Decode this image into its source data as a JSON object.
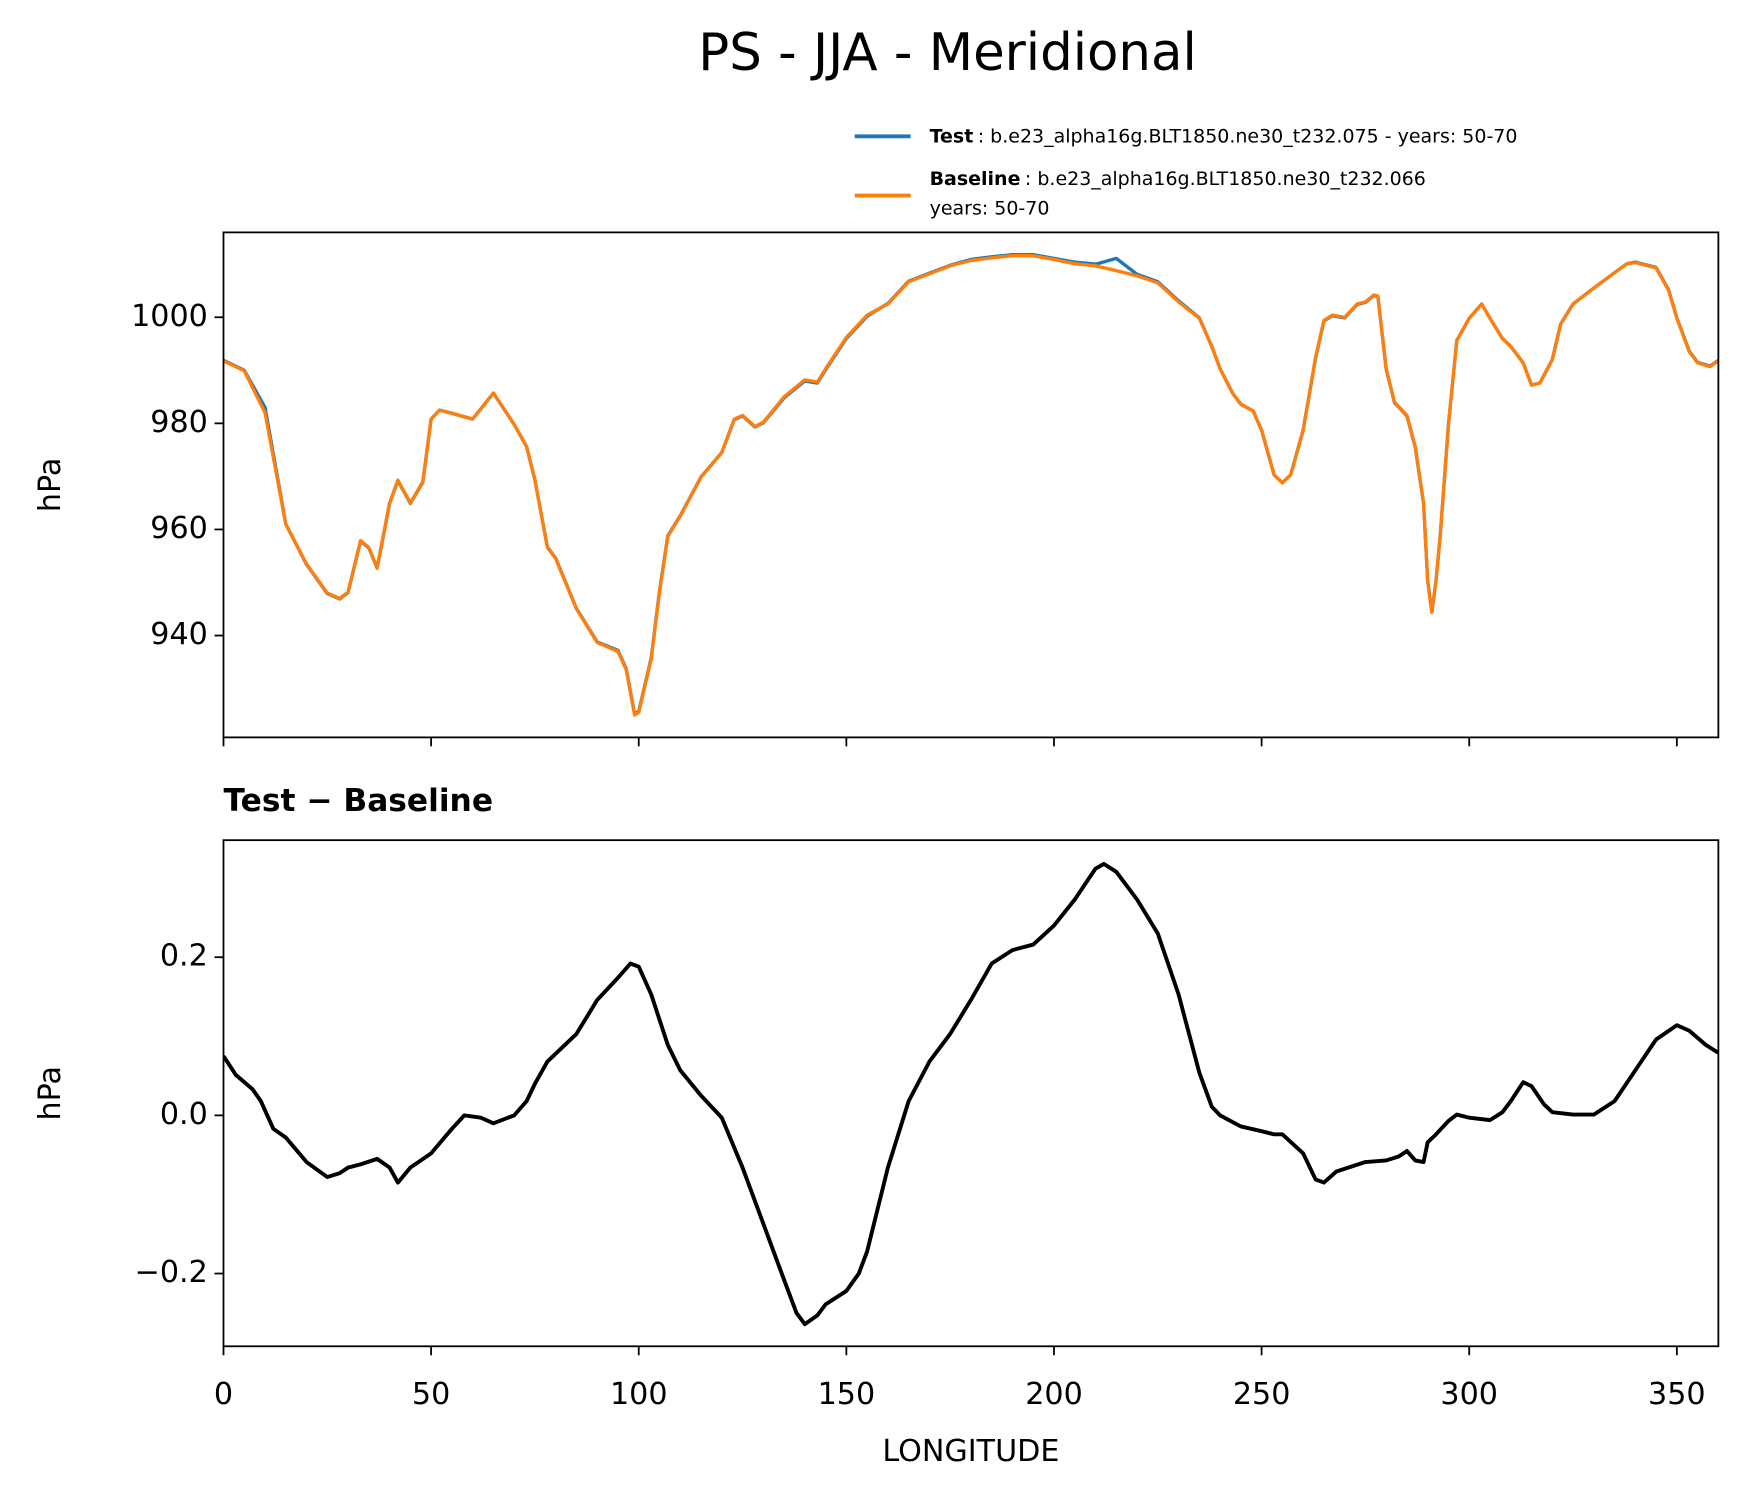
{
  "title": "PS - JJA - Meridional",
  "chart_data": [
    {
      "type": "line",
      "ylabel": "hPa",
      "legend": "above right",
      "x_tick_labels": false,
      "xlim": [
        0,
        360
      ],
      "xticks": [
        0,
        50,
        100,
        150,
        200,
        250,
        300,
        350
      ],
      "ylim": [
        920.8,
        1016
      ],
      "yticks": [
        940,
        960,
        980,
        1000
      ],
      "x": [
        0,
        5,
        10,
        15,
        20,
        25,
        28,
        30,
        33,
        35,
        37,
        40,
        42,
        45,
        48,
        50,
        52,
        55,
        60,
        65,
        70,
        73,
        75,
        78,
        80,
        85,
        90,
        95,
        97,
        99,
        100,
        103,
        105,
        107,
        110,
        115,
        120,
        123,
        125,
        128,
        130,
        135,
        140,
        143,
        145,
        150,
        155,
        160,
        165,
        170,
        175,
        180,
        185,
        190,
        195,
        200,
        205,
        210,
        215,
        220,
        225,
        230,
        235,
        238,
        240,
        243,
        245,
        248,
        250,
        253,
        255,
        257,
        260,
        263,
        265,
        267,
        270,
        273,
        275,
        277,
        278,
        280,
        282,
        285,
        287,
        289,
        290,
        291,
        292,
        293,
        295,
        297,
        300,
        303,
        305,
        308,
        310,
        313,
        315,
        317,
        320,
        322,
        325,
        330,
        335,
        338,
        340,
        345,
        348,
        350,
        353,
        355,
        358,
        360
      ],
      "series": [
        {
          "name": "Test",
          "description": [
            ": b.e23_alpha16g.BLT1850.ne30_t232.075 - years: 50-70"
          ],
          "color": "#1f77b4",
          "values": [
            991.9,
            990.0,
            983.0,
            961.0,
            953.4,
            947.9,
            946.9,
            948.1,
            957.8,
            956.5,
            952.7,
            964.9,
            969.2,
            964.9,
            968.9,
            980.8,
            982.5,
            981.9,
            980.8,
            985.7,
            979.8,
            975.6,
            969.3,
            956.7,
            954.6,
            945.1,
            938.8,
            937.2,
            933.7,
            925.2,
            925.7,
            935.8,
            948.4,
            958.8,
            962.6,
            969.9,
            974.5,
            980.7,
            981.4,
            979.3,
            980.1,
            984.8,
            988.0,
            987.6,
            990.1,
            996.0,
            1000.2,
            1002.6,
            1006.8,
            1008.3,
            1009.8,
            1010.9,
            1011.4,
            1011.8,
            1011.8,
            1011.1,
            1010.4,
            1010.0,
            1011.1,
            1008.1,
            1006.7,
            1003.1,
            999.9,
            994.5,
            990.3,
            985.7,
            983.6,
            982.3,
            978.7,
            970.3,
            968.8,
            970.3,
            978.7,
            992.3,
            999.3,
            1000.3,
            999.9,
            1002.4,
            1002.8,
            1004.1,
            1003.9,
            990.2,
            983.9,
            981.4,
            975.5,
            964.9,
            950.3,
            944.4,
            950.3,
            958.7,
            979.8,
            995.6,
            999.8,
            1002.5,
            999.8,
            996.0,
            994.5,
            991.4,
            987.2,
            987.6,
            992.0,
            998.7,
            1002.5,
            1005.5,
            1008.4,
            1010.1,
            1010.4,
            1009.4,
            1005.2,
            999.9,
            993.6,
            991.5,
            990.8,
            991.9
          ]
        },
        {
          "name": "Baseline",
          "description": [
            ": b.e23_alpha16g.BLT1850.ne30_t232.066",
            "years: 50-70"
          ],
          "color": "#ff7f0e",
          "values": [
            991.8,
            989.9,
            982.0,
            961.0,
            953.5,
            948.0,
            947.0,
            948.2,
            957.9,
            956.6,
            952.8,
            965.0,
            969.3,
            965.0,
            969.0,
            980.8,
            982.5,
            981.9,
            980.8,
            985.7,
            979.8,
            975.6,
            969.3,
            956.6,
            954.5,
            945.0,
            938.7,
            937.0,
            933.5,
            925.0,
            925.5,
            935.6,
            948.2,
            958.7,
            962.5,
            969.9,
            974.5,
            980.8,
            981.5,
            979.4,
            980.2,
            985.0,
            988.2,
            987.8,
            990.3,
            996.2,
            1000.4,
            1002.5,
            1006.7,
            1008.2,
            1009.7,
            1010.7,
            1011.2,
            1011.6,
            1011.6,
            1010.9,
            1010.1,
            1009.7,
            1008.8,
            1007.8,
            1006.5,
            1002.9,
            999.8,
            994.5,
            990.3,
            985.7,
            983.6,
            982.3,
            978.7,
            970.3,
            968.8,
            970.3,
            978.7,
            992.4,
            999.4,
            1000.4,
            1000.0,
            1002.5,
            1002.9,
            1004.2,
            1004.0,
            990.3,
            984.0,
            981.5,
            975.6,
            965.0,
            950.3,
            944.4,
            950.3,
            958.7,
            979.8,
            995.6,
            999.8,
            1002.5,
            999.8,
            996.0,
            994.5,
            991.4,
            987.2,
            987.6,
            992.0,
            998.7,
            1002.5,
            1005.5,
            1008.4,
            1010.1,
            1010.3,
            1009.3,
            1005.1,
            999.8,
            993.5,
            991.4,
            990.7,
            991.8
          ]
        }
      ]
    },
    {
      "type": "line",
      "title": "Test − Baseline",
      "ylabel": "hPa",
      "xlabel": "LONGITUDE",
      "color": "#000000",
      "xlim": [
        0,
        360
      ],
      "xticks": [
        0,
        50,
        100,
        150,
        200,
        250,
        300,
        350
      ],
      "ylim": [
        -0.292,
        0.348
      ],
      "yticks": [
        {
          "value": -0.2,
          "label": "−0.2"
        },
        {
          "value": 0,
          "label": "0.0"
        },
        0.2
      ],
      "x": [
        0,
        3,
        7,
        9,
        12,
        15,
        20,
        25,
        28,
        30,
        33,
        37,
        40,
        42,
        45,
        50,
        55,
        58,
        62,
        65,
        70,
        73,
        75,
        78,
        85,
        90,
        95,
        98,
        100,
        103,
        107,
        110,
        115,
        120,
        125,
        130,
        135,
        138,
        140,
        143,
        145,
        150,
        153,
        155,
        160,
        165,
        170,
        175,
        180,
        185,
        190,
        195,
        200,
        205,
        210,
        212,
        215,
        220,
        225,
        230,
        235,
        238,
        240,
        245,
        250,
        253,
        255,
        260,
        263,
        265,
        268,
        275,
        280,
        283,
        285,
        287,
        289,
        290,
        292,
        295,
        297,
        300,
        305,
        308,
        310,
        313,
        315,
        318,
        320,
        325,
        330,
        335,
        340,
        345,
        350,
        353,
        357,
        360
      ],
      "values": [
        0.075,
        0.051,
        0.033,
        0.018,
        -0.017,
        -0.028,
        -0.059,
        -0.078,
        -0.073,
        -0.066,
        -0.062,
        -0.055,
        -0.066,
        -0.085,
        -0.066,
        -0.048,
        -0.017,
        0,
        -0.003,
        -0.01,
        0,
        0.018,
        0.04,
        0.068,
        0.103,
        0.146,
        0.174,
        0.192,
        0.188,
        0.153,
        0.089,
        0.057,
        0.025,
        -0.003,
        -0.066,
        -0.137,
        -0.208,
        -0.25,
        -0.264,
        -0.253,
        -0.239,
        -0.222,
        -0.2,
        -0.172,
        -0.066,
        0.018,
        0.068,
        0.103,
        0.146,
        0.192,
        0.209,
        0.216,
        0.24,
        0.273,
        0.312,
        0.318,
        0.308,
        0.273,
        0.23,
        0.153,
        0.054,
        0.011,
        0,
        -0.014,
        -0.02,
        -0.024,
        -0.024,
        -0.048,
        -0.081,
        -0.085,
        -0.071,
        -0.059,
        -0.057,
        -0.052,
        -0.045,
        -0.057,
        -0.059,
        -0.034,
        -0.024,
        -0.007,
        0.001,
        -0.003,
        -0.006,
        0.004,
        0.018,
        0.042,
        0.037,
        0.014,
        0.004,
        0.001,
        0.001,
        0.018,
        0.057,
        0.096,
        0.114,
        0.107,
        0.089,
        0.079
      ]
    }
  ]
}
